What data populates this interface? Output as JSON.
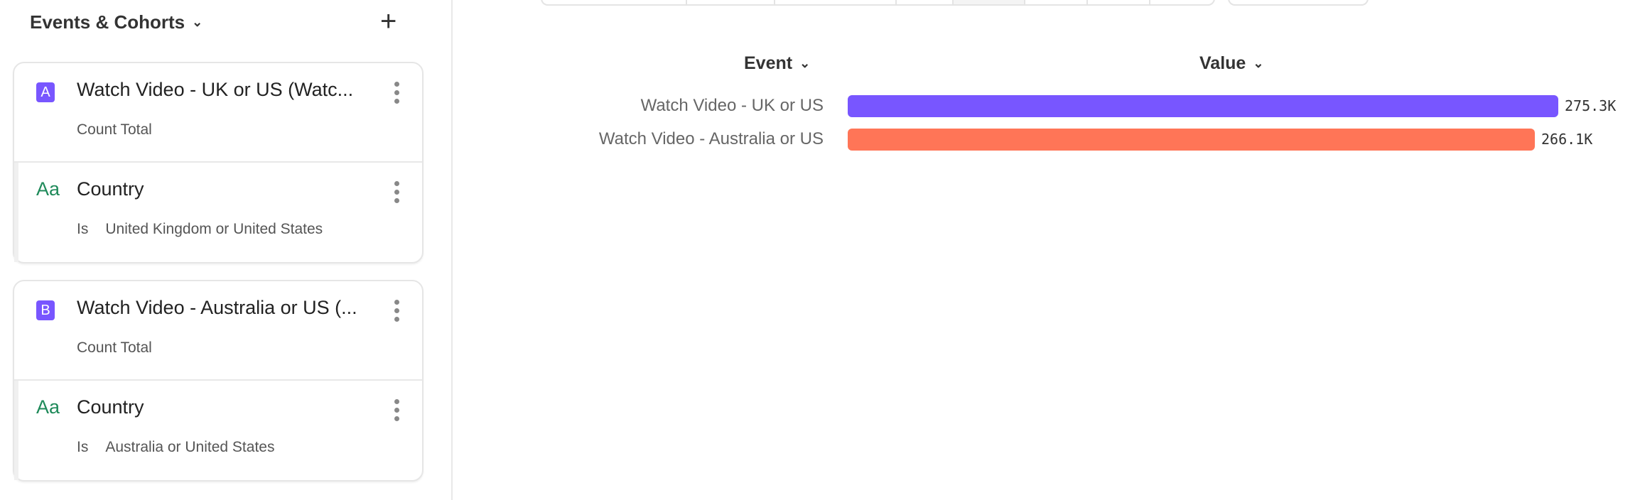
{
  "sidebar": {
    "title": "Events & Cohorts",
    "cards": [
      {
        "badge": "A",
        "event": "Watch Video - UK or US (Watc...",
        "measure": "Count Total",
        "filter": {
          "property": "Country",
          "operator": "Is",
          "value": "United Kingdom or United States"
        }
      },
      {
        "badge": "B",
        "event": "Watch Video - Australia or US (...",
        "measure": "Count Total",
        "filter": {
          "property": "Country",
          "operator": "Is",
          "value": "Australia or United States"
        }
      }
    ],
    "property_type_icon": "Aa"
  },
  "colors": {
    "accent": "#7856ff",
    "series_a": "#7856ff",
    "series_b": "#ff7557",
    "property_icon": "#1f8a5a"
  },
  "chart_data": {
    "type": "bar",
    "orientation": "horizontal",
    "column_headers": [
      "Event",
      "Value"
    ],
    "categories": [
      "Watch Video - UK or US",
      "Watch Video - Australia or US"
    ],
    "values": [
      275300,
      266100
    ],
    "value_labels": [
      "275.3K",
      "266.1K"
    ],
    "colors": [
      "#7856ff",
      "#ff7557"
    ]
  }
}
